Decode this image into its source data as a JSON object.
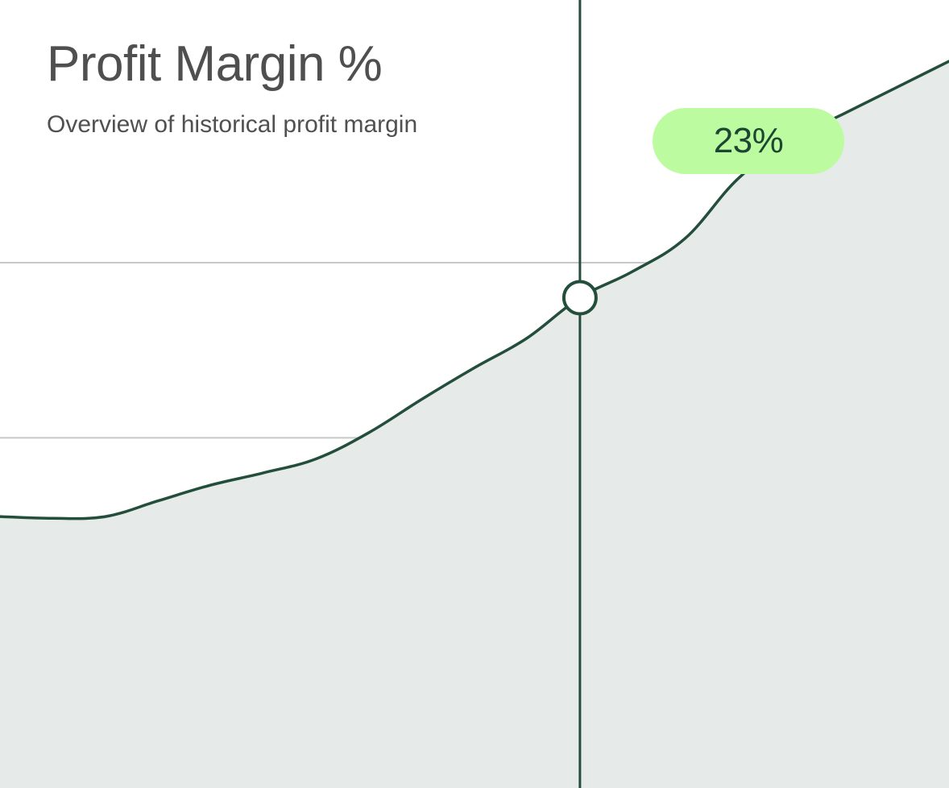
{
  "header": {
    "title": "Profit Margin %",
    "subtitle": "Overview of historical profit margin"
  },
  "tooltip": {
    "label": "23%",
    "value": 23
  },
  "colors": {
    "line": "#234e3c",
    "area_fill": "#e6eae8",
    "gridline": "#c8c8c8",
    "tooltip_bg": "#bdfba1",
    "tooltip_text": "#1c4632",
    "marker_fill": "#ffffff",
    "title_text": "#4f4f4f"
  },
  "chart_data": {
    "type": "area",
    "title": "Profit Margin %",
    "subtitle": "Overview of historical profit margin",
    "xlabel": "",
    "ylabel": "",
    "x": [
      0,
      1,
      2,
      3,
      4,
      5,
      6,
      7,
      8,
      9,
      10,
      11,
      12,
      13,
      14,
      15,
      16,
      17,
      18
    ],
    "values": [
      10.5,
      10.4,
      10.5,
      11.4,
      12.3,
      13.0,
      13.8,
      15.3,
      17.2,
      19.0,
      20.7,
      23.0,
      24.5,
      26.4,
      29.8,
      32.0,
      33.5,
      35.0,
      36.5
    ],
    "highlight": {
      "x": 11,
      "y": 23,
      "label": "23%"
    },
    "ylim": [
      -5,
      40
    ],
    "gridlines": [
      5,
      15,
      25
    ],
    "grid": true,
    "legend": "none"
  }
}
